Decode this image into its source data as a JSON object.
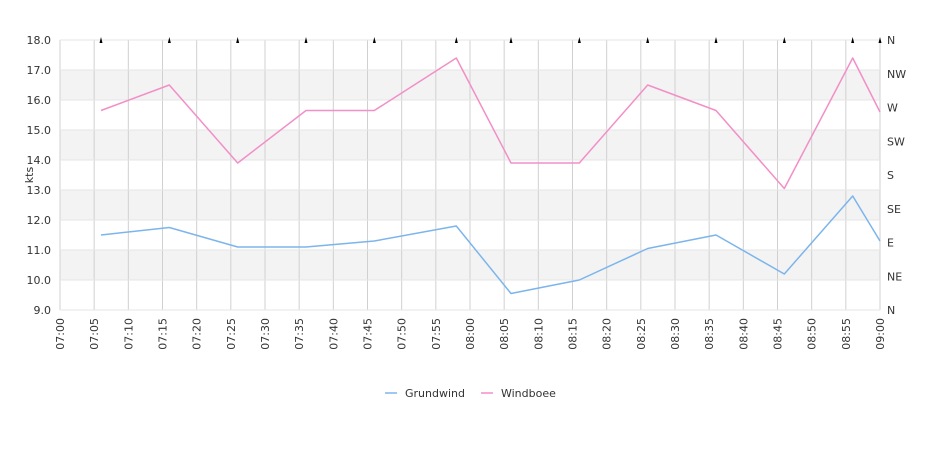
{
  "chart_data": {
    "type": "line",
    "title": "",
    "ylabel": "kts",
    "ylim": [
      9.0,
      18.0
    ],
    "y_ticks": [
      "18.0",
      "17.0",
      "16.0",
      "15.0",
      "14.0",
      "13.0",
      "12.0",
      "11.0",
      "10.0",
      "9.0"
    ],
    "right_axis_ticks": [
      "N",
      "NW",
      "W",
      "SW",
      "S",
      "SE",
      "E",
      "NE",
      "N"
    ],
    "x_ticks": [
      "07:00",
      "07:05",
      "07:10",
      "07:15",
      "07:20",
      "07:25",
      "07:30",
      "07:35",
      "07:40",
      "07:45",
      "07:50",
      "07:55",
      "08:00",
      "08:05",
      "08:10",
      "08:15",
      "08:20",
      "08:25",
      "08:30",
      "08:35",
      "08:40",
      "08:45",
      "08:50",
      "08:55",
      "09:00"
    ],
    "xlim": [
      "07:00",
      "09:00"
    ],
    "grid": true,
    "legend_position": "bottom",
    "series": [
      {
        "name": "Grundwind",
        "color": "#7cb5ec",
        "x": [
          "07:06",
          "07:16",
          "07:26",
          "07:36",
          "07:46",
          "07:58",
          "08:06",
          "08:16",
          "08:26",
          "08:36",
          "08:46",
          "08:56",
          "09:00"
        ],
        "y": [
          11.5,
          11.75,
          11.1,
          11.1,
          11.3,
          11.8,
          9.55,
          10.0,
          11.05,
          11.5,
          10.2,
          12.8,
          11.3
        ]
      },
      {
        "name": "Windboee",
        "color": "#f28fc7",
        "x": [
          "07:06",
          "07:16",
          "07:26",
          "07:36",
          "07:46",
          "07:58",
          "08:06",
          "08:16",
          "08:26",
          "08:36",
          "08:46",
          "08:56",
          "09:00"
        ],
        "y": [
          15.65,
          16.5,
          13.9,
          15.65,
          15.65,
          17.4,
          13.9,
          13.9,
          16.5,
          15.65,
          13.05,
          17.4,
          15.6
        ]
      }
    ],
    "direction_markers": {
      "x": [
        "07:06",
        "07:16",
        "07:26",
        "07:36",
        "07:46",
        "07:58",
        "08:06",
        "08:16",
        "08:26",
        "08:36",
        "08:46",
        "08:56",
        "09:00"
      ],
      "direction": [
        "N",
        "N",
        "N",
        "N",
        "N",
        "N",
        "N",
        "N",
        "N",
        "N",
        "N",
        "N",
        "N"
      ]
    }
  }
}
